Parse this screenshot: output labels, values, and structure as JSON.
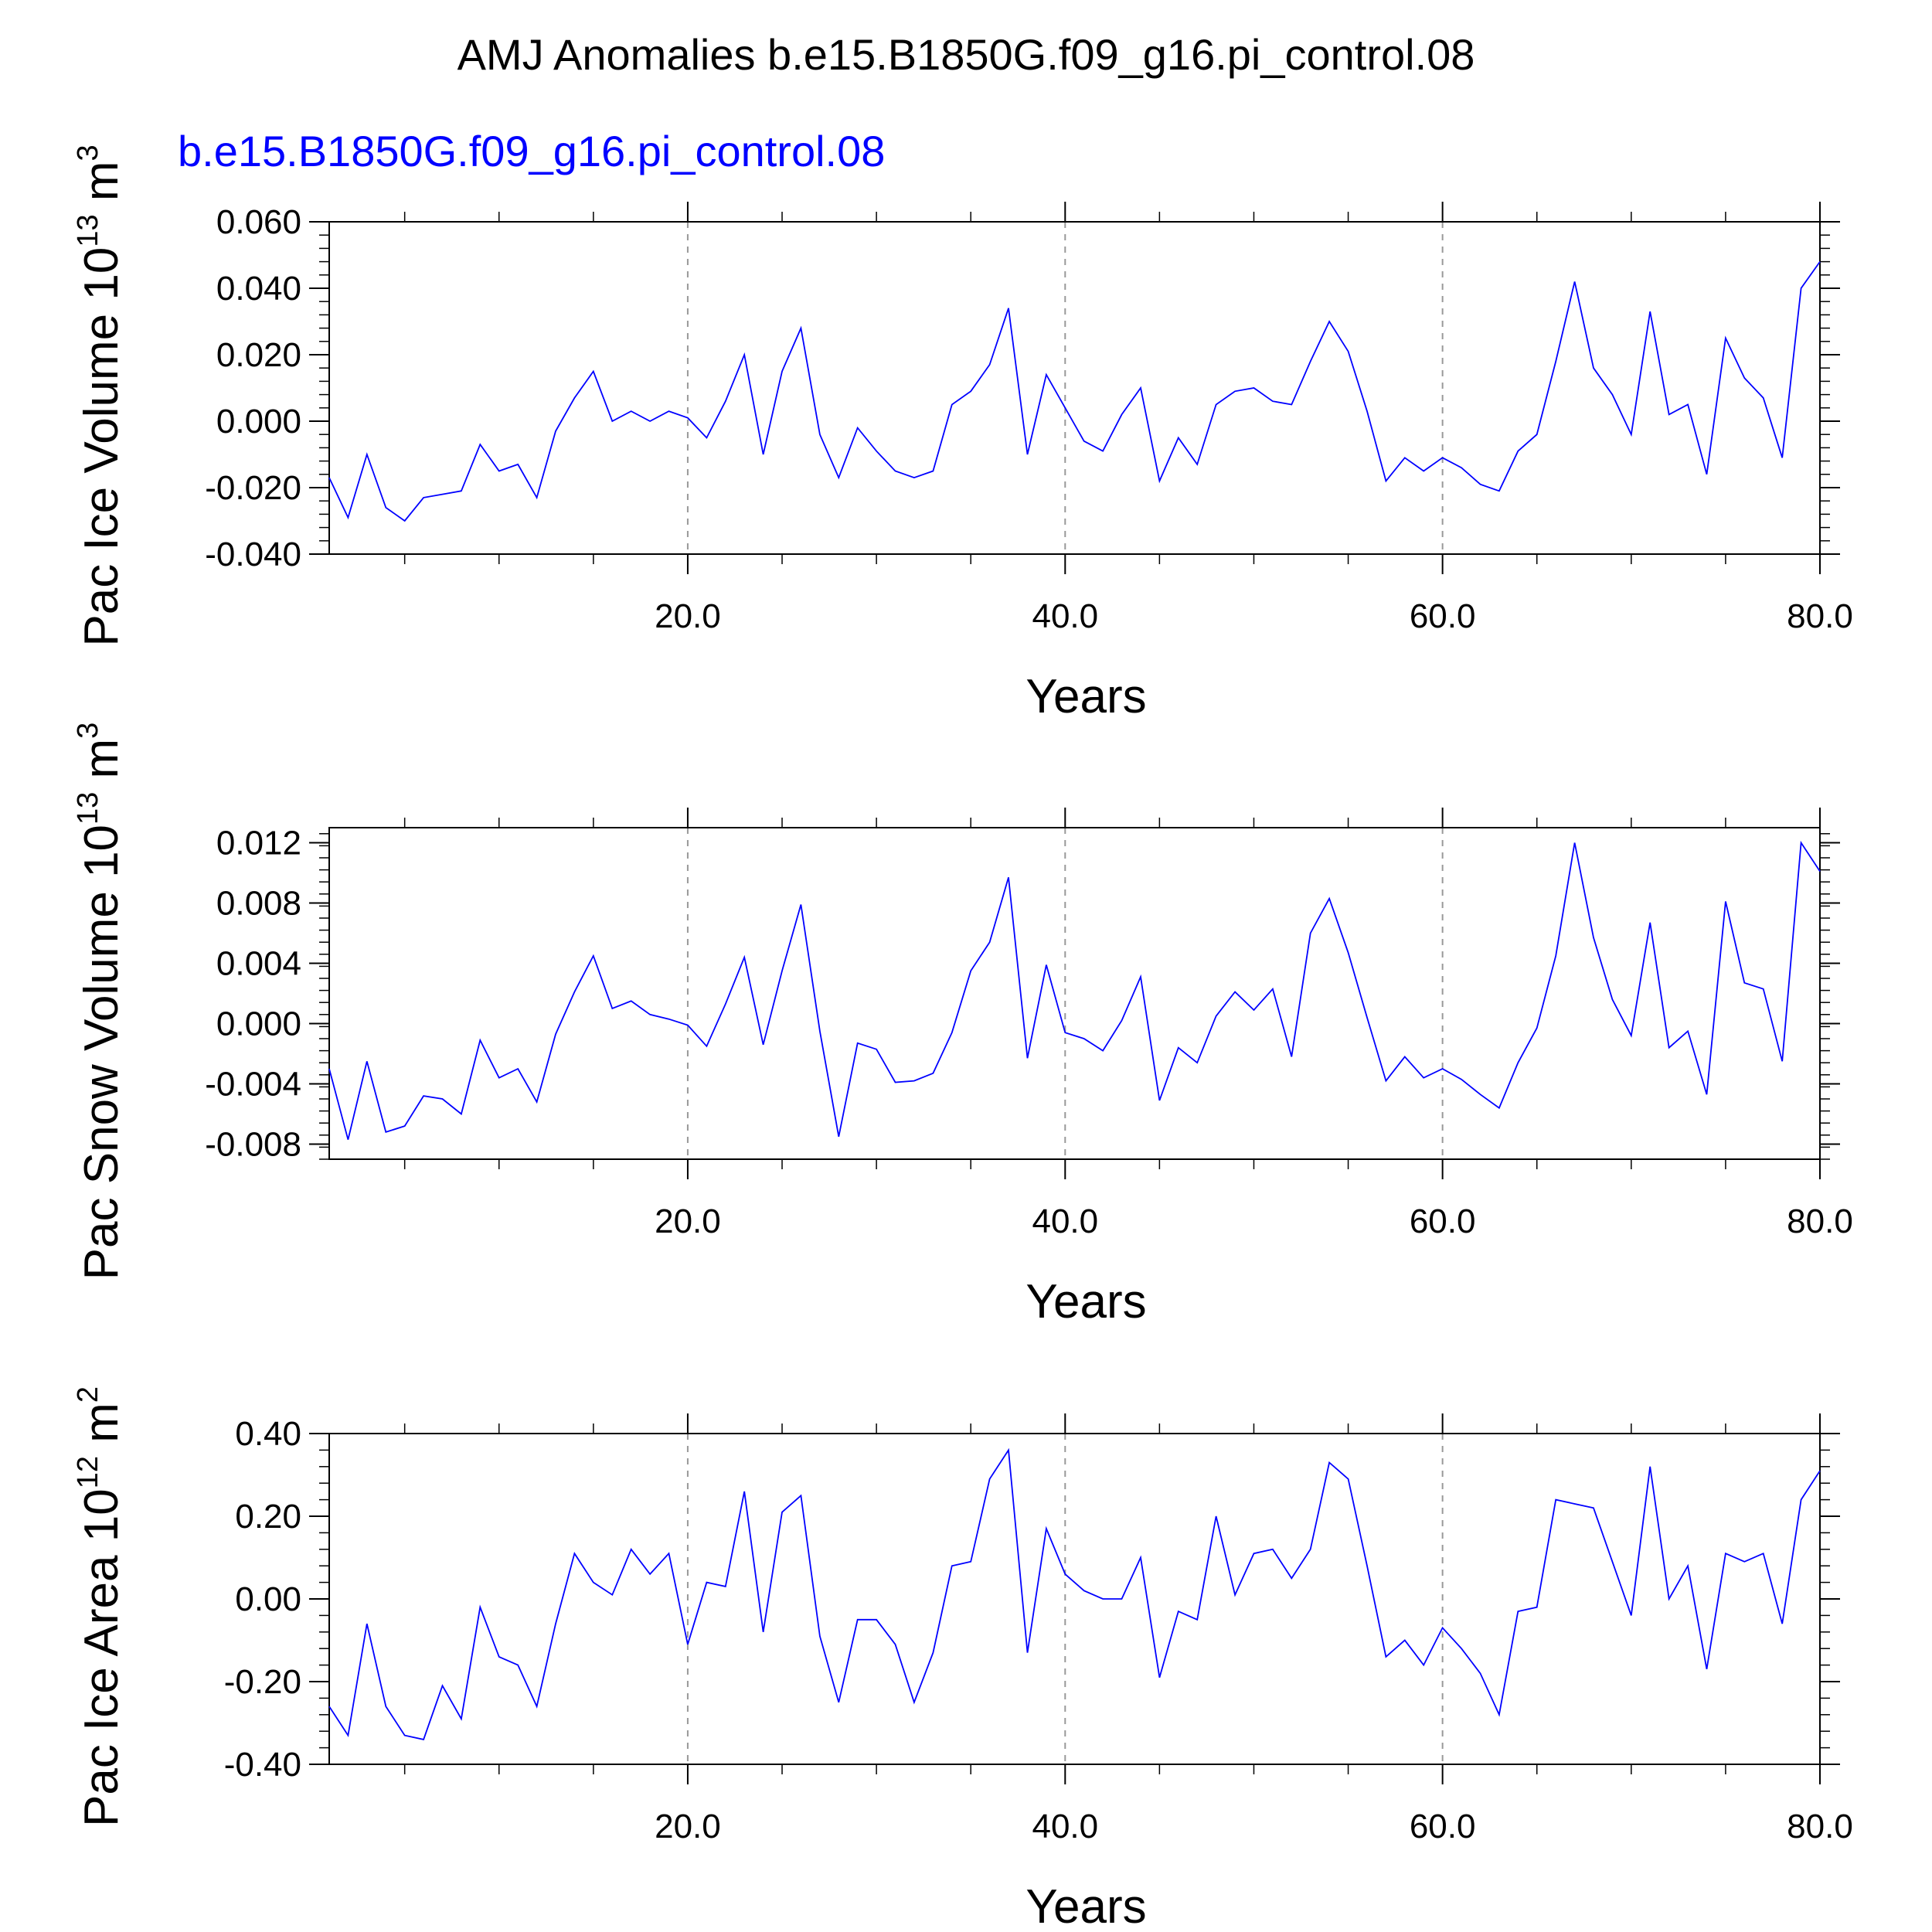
{
  "figure": {
    "title": "AMJ Anomalies b.e15.B1850G.f09_g16.pi_control.08",
    "subtitle": "b.e15.B1850G.f09_g16.pi_control.08",
    "line_color": "#0000ff"
  },
  "chart_data": [
    {
      "type": "line",
      "ylabel": "Pac Ice Volume 10",
      "ylabel_sup": "13",
      "ylabel_unit": "m",
      "ylabel_unit_sup": "3",
      "xlabel": "Years",
      "xlim": [
        1,
        80
      ],
      "ylim": [
        -0.04,
        0.06
      ],
      "x_ticks": [
        20,
        40,
        60,
        80
      ],
      "x_tick_labels": [
        "20.0",
        "40.0",
        "60.0",
        "80.0"
      ],
      "y_ticks": [
        -0.04,
        -0.02,
        0.0,
        0.02,
        0.04,
        0.06
      ],
      "y_tick_labels": [
        "-0.040",
        "-0.020",
        "0.000",
        "0.020",
        "0.040",
        "0.060"
      ],
      "x_start": 1,
      "values": [
        -0.017,
        -0.029,
        -0.01,
        -0.026,
        -0.03,
        -0.023,
        -0.022,
        -0.021,
        -0.007,
        -0.015,
        -0.013,
        -0.023,
        -0.003,
        0.007,
        0.015,
        0.0,
        0.003,
        0.0,
        0.003,
        0.001,
        -0.005,
        0.006,
        0.02,
        -0.01,
        0.015,
        0.028,
        -0.004,
        -0.017,
        -0.002,
        -0.009,
        -0.015,
        -0.017,
        -0.015,
        0.005,
        0.009,
        0.017,
        0.034,
        -0.01,
        0.014,
        0.004,
        -0.006,
        -0.009,
        0.002,
        0.01,
        -0.018,
        -0.005,
        -0.013,
        0.005,
        0.009,
        0.01,
        0.006,
        0.005,
        0.018,
        0.03,
        0.021,
        0.003,
        -0.018,
        -0.011,
        -0.015,
        -0.011,
        -0.014,
        -0.019,
        -0.021,
        -0.009,
        -0.004,
        0.018,
        0.042,
        0.016,
        0.008,
        -0.004,
        0.033,
        0.002,
        0.005,
        -0.016,
        0.025,
        0.013,
        0.007,
        -0.011,
        0.04,
        0.048
      ]
    },
    {
      "type": "line",
      "ylabel": "Pac Snow Volume 10",
      "ylabel_sup": "13",
      "ylabel_unit": "m",
      "ylabel_unit_sup": "3",
      "xlabel": "Years",
      "xlim": [
        1,
        80
      ],
      "ylim": [
        -0.009,
        0.013
      ],
      "x_ticks": [
        20,
        40,
        60,
        80
      ],
      "x_tick_labels": [
        "20.0",
        "40.0",
        "60.0",
        "80.0"
      ],
      "y_ticks": [
        -0.008,
        -0.004,
        0.0,
        0.004,
        0.008,
        0.012
      ],
      "y_tick_labels": [
        "-0.008",
        "-0.004",
        "0.000",
        "0.004",
        "0.008",
        "0.012"
      ],
      "x_start": 1,
      "values": [
        -0.003,
        -0.0077,
        -0.0025,
        -0.0072,
        -0.0068,
        -0.0048,
        -0.005,
        -0.006,
        -0.0011,
        -0.0036,
        -0.003,
        -0.0052,
        -0.0007,
        0.0021,
        0.0045,
        0.001,
        0.0015,
        0.0006,
        0.0003,
        -0.0001,
        -0.0015,
        0.0013,
        0.0044,
        -0.0014,
        0.0035,
        0.0079,
        -0.0005,
        -0.0075,
        -0.0013,
        -0.0017,
        -0.0039,
        -0.0038,
        -0.0033,
        -0.0006,
        0.0035,
        0.0054,
        0.0097,
        -0.0023,
        0.0039,
        -0.0006,
        -0.001,
        -0.0018,
        0.0002,
        0.0031,
        -0.0051,
        -0.0016,
        -0.0026,
        0.0005,
        0.0021,
        0.0009,
        0.0023,
        -0.0022,
        0.006,
        0.0083,
        0.0047,
        0.0004,
        -0.0038,
        -0.0022,
        -0.0036,
        -0.003,
        -0.0037,
        -0.0047,
        -0.0056,
        -0.0026,
        -0.0003,
        0.0045,
        0.012,
        0.0057,
        0.0016,
        -0.0008,
        0.0067,
        -0.0016,
        -0.0005,
        -0.0047,
        0.0081,
        0.0027,
        0.0023,
        -0.0025,
        0.012,
        0.0101
      ]
    },
    {
      "type": "line",
      "ylabel": "Pac Ice Area 10",
      "ylabel_sup": "12",
      "ylabel_unit": "m",
      "ylabel_unit_sup": "2",
      "xlabel": "Years",
      "xlim": [
        1,
        80
      ],
      "ylim": [
        -0.4,
        0.4
      ],
      "x_ticks": [
        20,
        40,
        60,
        80
      ],
      "x_tick_labels": [
        "20.0",
        "40.0",
        "60.0",
        "80.0"
      ],
      "y_ticks": [
        -0.4,
        -0.2,
        0.0,
        0.2,
        0.4
      ],
      "y_tick_labels": [
        "-0.40",
        "-0.20",
        "0.00",
        "0.20",
        "0.40"
      ],
      "x_start": 1,
      "values": [
        -0.26,
        -0.33,
        -0.06,
        -0.26,
        -0.33,
        -0.34,
        -0.21,
        -0.29,
        -0.02,
        -0.14,
        -0.16,
        -0.26,
        -0.06,
        0.11,
        0.04,
        0.01,
        0.12,
        0.06,
        0.11,
        -0.11,
        0.04,
        0.03,
        0.26,
        -0.08,
        0.21,
        0.25,
        -0.09,
        -0.25,
        -0.05,
        -0.05,
        -0.11,
        -0.25,
        -0.13,
        0.08,
        0.09,
        0.29,
        0.36,
        -0.13,
        0.17,
        0.06,
        0.02,
        0.0,
        0.0,
        0.1,
        -0.19,
        -0.03,
        -0.05,
        0.2,
        0.01,
        0.11,
        0.12,
        0.05,
        0.12,
        0.33,
        0.29,
        0.08,
        -0.14,
        -0.1,
        -0.16,
        -0.07,
        -0.12,
        -0.18,
        -0.28,
        -0.03,
        -0.02,
        0.24,
        0.23,
        0.22,
        0.09,
        -0.04,
        0.32,
        0.0,
        0.08,
        -0.17,
        0.11,
        0.09,
        0.11,
        -0.06,
        0.24,
        0.31
      ]
    }
  ]
}
